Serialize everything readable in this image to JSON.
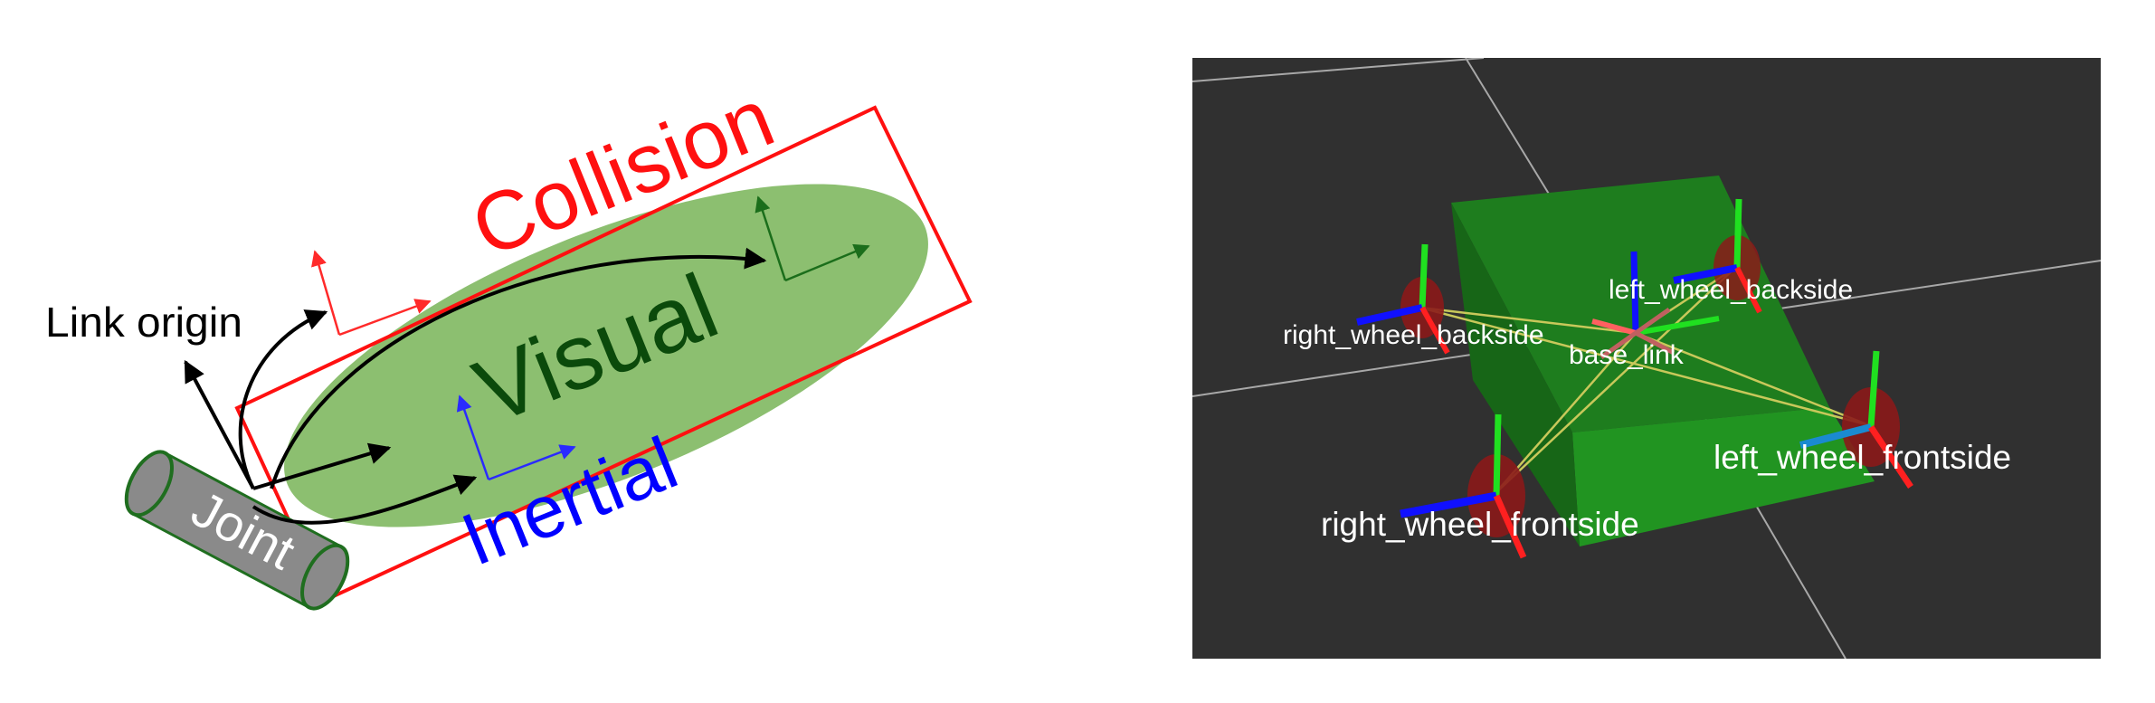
{
  "diagram": {
    "labels": {
      "collision": "Collision",
      "visual": "Visual",
      "inertial": "Inertial",
      "link_origin": "Link origin",
      "joint": "Joint"
    },
    "colors": {
      "collision": "#ff0000",
      "visual_fill": "#8cbf70",
      "visual_text": "#0b4a0b",
      "inertial": "#0000ff",
      "joint_fill": "#8a8a8a",
      "joint_edge": "#1f6e1f"
    }
  },
  "rviz": {
    "frames": {
      "base_link": "base_link",
      "left_wheel_backside": "left_wheel_backside",
      "right_wheel_backside": "right_wheel_backside",
      "left_wheel_frontside": "left_wheel_frontside",
      "right_wheel_frontside": "right_wheel_frontside"
    },
    "colors": {
      "background": "#303030",
      "grid": "#a8a8a8",
      "body": "#1e8a1e",
      "wheel": "#8b1a1a",
      "x_axis": "#ff2020",
      "y_axis": "#20e020",
      "z_axis": "#1010ff",
      "tf_link": "#c8c85a"
    }
  }
}
